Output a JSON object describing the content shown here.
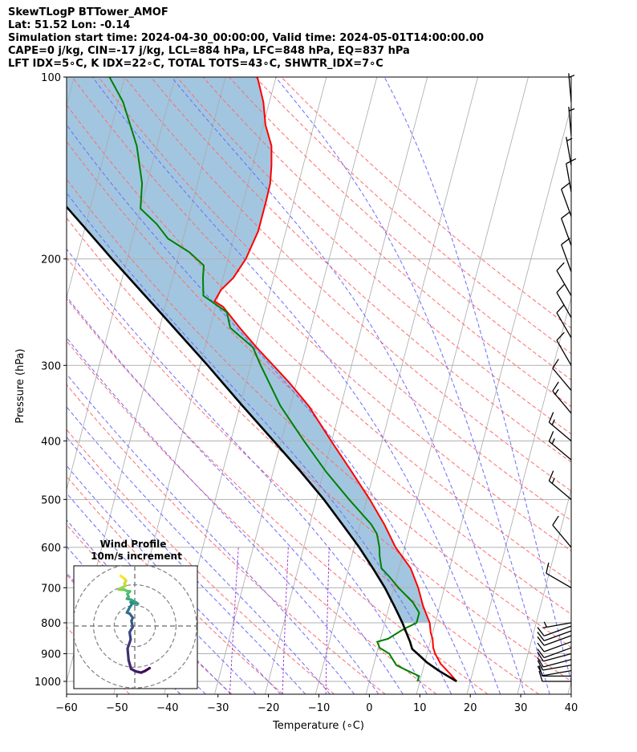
{
  "header": {
    "line1": "SkewTLogP BTTower_AMOF",
    "line2": "Lat: 51.52   Lon: -0.14",
    "line3": "Simulation start time: 2024-04-30_00:00:00, Valid time: 2024-05-01T14:00:00.00",
    "line4": "CAPE=0 j/kg, CIN=-17 j/kg, LCL=884 hPa, LFC=848 hPa, EQ=837 hPa",
    "line5": "LFT IDX=5∘C, K IDX=22∘C, TOTAL TOTS=43∘C, SHWTR_IDX=7∘C"
  },
  "colors": {
    "temperature": "#ff0000",
    "dewpoint": "#008000",
    "parcel": "#000000",
    "cape_fill": "#a2c6e0",
    "dry_adiabat": "#ff6b6b",
    "moist_adiabat": "#6b6bff",
    "mixing_ratio": "#9b30d0",
    "isotherm": "#a9a9a9"
  },
  "chart_data": {
    "type": "skewt",
    "xlabel": "Temperature (∘C)",
    "ylabel": "Pressure (hPa)",
    "xlim": [
      -60,
      40
    ],
    "ylim": [
      1050,
      100
    ],
    "xticks": [
      "−60",
      "−50",
      "−40",
      "−30",
      "−20",
      "−10",
      "0",
      "10",
      "20",
      "30",
      "40"
    ],
    "xtick_values": [
      -60,
      -50,
      -40,
      -30,
      -20,
      -10,
      0,
      10,
      20,
      30,
      40
    ],
    "yticks": [
      "1000",
      "900",
      "800",
      "700",
      "600",
      "500",
      "400",
      "300",
      "200",
      "100"
    ],
    "ytick_values": [
      1000,
      900,
      800,
      700,
      600,
      500,
      400,
      300,
      200,
      100
    ],
    "skew": 31.5,
    "temperature_profile": [
      [
        1000,
        17.3
      ],
      [
        970,
        15.5
      ],
      [
        935,
        13.2
      ],
      [
        900,
        11.6
      ],
      [
        880,
        10.9
      ],
      [
        850,
        10.3
      ],
      [
        830,
        9.6
      ],
      [
        800,
        8.9
      ],
      [
        750,
        6.7
      ],
      [
        700,
        4.8
      ],
      [
        650,
        2.3
      ],
      [
        600,
        -1.8
      ],
      [
        550,
        -5.2
      ],
      [
        500,
        -9.4
      ],
      [
        450,
        -14.4
      ],
      [
        400,
        -20.1
      ],
      [
        350,
        -26.4
      ],
      [
        320,
        -31.5
      ],
      [
        300,
        -35.5
      ],
      [
        280,
        -39.8
      ],
      [
        260,
        -44.1
      ],
      [
        240,
        -48.5
      ],
      [
        235,
        -50.5
      ],
      [
        225,
        -49.8
      ],
      [
        215,
        -48.0
      ],
      [
        200,
        -46.5
      ],
      [
        180,
        -45.5
      ],
      [
        160,
        -45.5
      ],
      [
        150,
        -45.6
      ],
      [
        140,
        -46.3
      ],
      [
        130,
        -47.3
      ],
      [
        120,
        -49.6
      ],
      [
        110,
        -51.2
      ],
      [
        100,
        -53.7
      ]
    ],
    "dewpoint_profile": [
      [
        1000,
        9.5
      ],
      [
        980,
        9.6
      ],
      [
        960,
        7.0
      ],
      [
        940,
        4.5
      ],
      [
        920,
        3.5
      ],
      [
        900,
        2.5
      ],
      [
        880,
        0.3
      ],
      [
        860,
        -0.5
      ],
      [
        850,
        1.5
      ],
      [
        820,
        4.0
      ],
      [
        800,
        6.3
      ],
      [
        770,
        6.3
      ],
      [
        740,
        4.5
      ],
      [
        700,
        0.9
      ],
      [
        670,
        -1.6
      ],
      [
        650,
        -3.5
      ],
      [
        620,
        -4.5
      ],
      [
        600,
        -5.0
      ],
      [
        570,
        -6.2
      ],
      [
        550,
        -7.8
      ],
      [
        500,
        -13.5
      ],
      [
        450,
        -19.5
      ],
      [
        400,
        -25.5
      ],
      [
        350,
        -32.0
      ],
      [
        300,
        -38.0
      ],
      [
        280,
        -40.5
      ],
      [
        260,
        -46.0
      ],
      [
        245,
        -47.5
      ],
      [
        230,
        -53.0
      ],
      [
        215,
        -54.0
      ],
      [
        205,
        -54.5
      ],
      [
        195,
        -58.0
      ],
      [
        185,
        -63.0
      ],
      [
        175,
        -66.0
      ],
      [
        165,
        -70.0
      ],
      [
        150,
        -71.0
      ],
      [
        130,
        -74.0
      ],
      [
        110,
        -79.0
      ],
      [
        100,
        -83.0
      ]
    ],
    "parcel_profile": [
      [
        1000,
        17.3
      ],
      [
        960,
        13.2
      ],
      [
        930,
        10.4
      ],
      [
        900,
        8.1
      ],
      [
        884,
        6.8
      ],
      [
        860,
        6.0
      ],
      [
        800,
        3.5
      ],
      [
        750,
        1.0
      ],
      [
        700,
        -1.8
      ],
      [
        650,
        -5.2
      ],
      [
        600,
        -9.0
      ],
      [
        550,
        -13.5
      ],
      [
        500,
        -18.5
      ],
      [
        450,
        -24.5
      ],
      [
        400,
        -31.5
      ],
      [
        350,
        -39.5
      ],
      [
        300,
        -48.5
      ],
      [
        250,
        -59.5
      ],
      [
        200,
        -73.0
      ],
      [
        150,
        -90.0
      ],
      [
        100,
        -114.0
      ]
    ],
    "wind_barbs": [
      [
        1000,
        10,
        270
      ],
      [
        980,
        10,
        270
      ],
      [
        960,
        10,
        260
      ],
      [
        940,
        10,
        260
      ],
      [
        920,
        10,
        255
      ],
      [
        900,
        10,
        255
      ],
      [
        880,
        10,
        250
      ],
      [
        860,
        10,
        250
      ],
      [
        840,
        10,
        250
      ],
      [
        825,
        10,
        250
      ],
      [
        810,
        10,
        250
      ],
      [
        800,
        5,
        260
      ],
      [
        700,
        10,
        300
      ],
      [
        600,
        10,
        320
      ],
      [
        500,
        15,
        310
      ],
      [
        430,
        15,
        310
      ],
      [
        400,
        15,
        310
      ],
      [
        360,
        15,
        320
      ],
      [
        330,
        10,
        320
      ],
      [
        300,
        10,
        330
      ],
      [
        270,
        10,
        330
      ],
      [
        250,
        10,
        330
      ],
      [
        230,
        10,
        330
      ],
      [
        210,
        10,
        340
      ],
      [
        190,
        10,
        340
      ],
      [
        170,
        10,
        340
      ],
      [
        155,
        10,
        350
      ],
      [
        140,
        5,
        350
      ],
      [
        125,
        5,
        355
      ],
      [
        110,
        5,
        355
      ]
    ],
    "inset": {
      "title": "Wind Profile",
      "subtitle": "10m/s increment",
      "rings_mps": [
        10,
        20,
        30
      ],
      "hodograph_uv": [
        [
          7.2,
          -20.4
        ],
        [
          5.0,
          -21.8
        ],
        [
          3.0,
          -22.6
        ],
        [
          0.5,
          -22.0
        ],
        [
          -1.8,
          -20.8
        ],
        [
          -3.0,
          -16.5
        ],
        [
          -3.5,
          -11.0
        ],
        [
          -2.0,
          -6.5
        ],
        [
          -2.5,
          -3.0
        ],
        [
          -1.0,
          -0.5
        ],
        [
          -1.6,
          2.5
        ],
        [
          -1.0,
          4.0
        ],
        [
          -2.5,
          6.0
        ],
        [
          -3.8,
          6.5
        ],
        [
          -3.0,
          8.0
        ],
        [
          -2.5,
          9.0
        ],
        [
          -1.3,
          10.7
        ],
        [
          -2.0,
          11.5
        ],
        [
          -0.5,
          11.0
        ],
        [
          1.5,
          10.8
        ],
        [
          0.5,
          11.5
        ],
        [
          -2.0,
          12.8
        ],
        [
          -3.8,
          13.2
        ],
        [
          -3.0,
          14.2
        ],
        [
          -3.6,
          15.5
        ],
        [
          -2.3,
          16.8
        ],
        [
          -3.8,
          17.0
        ],
        [
          -5.0,
          17.6
        ],
        [
          -6.7,
          17.6
        ],
        [
          -7.8,
          17.7
        ],
        [
          -6.5,
          18.5
        ],
        [
          -4.5,
          19.5
        ],
        [
          -5.0,
          20.6
        ],
        [
          -4.2,
          22.0
        ],
        [
          -5.1,
          23.0
        ],
        [
          -5.9,
          23.6
        ],
        [
          -6.8,
          24.3
        ]
      ]
    }
  }
}
